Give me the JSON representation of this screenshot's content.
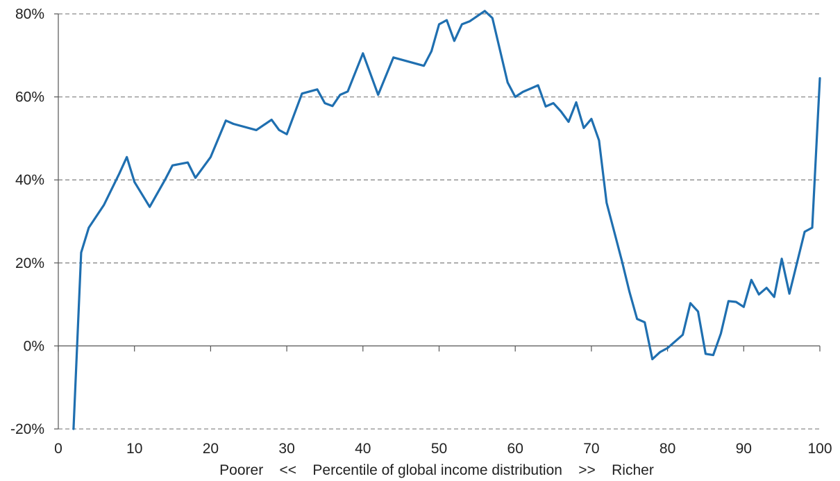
{
  "chart_data": {
    "type": "line",
    "title": "",
    "xlabel": "Poorer    <<    Percentile of global income distribution    >>    Richer",
    "ylabel": "",
    "xlim": [
      0,
      100
    ],
    "ylim": [
      -20,
      80
    ],
    "grid": true,
    "x_ticks": [
      0,
      10,
      20,
      30,
      40,
      50,
      60,
      70,
      80,
      90,
      100
    ],
    "x_tick_labels": [
      "0",
      "10",
      "20",
      "30",
      "40",
      "50",
      "60",
      "70",
      "80",
      "90",
      "100"
    ],
    "y_ticks": [
      -20,
      0,
      20,
      40,
      60,
      80
    ],
    "y_tick_labels": [
      "-20%",
      "0%",
      "20%",
      "40%",
      "60%",
      "80%"
    ],
    "series_color": "#1f6fb0",
    "series": [
      {
        "x": [
          2,
          3,
          4,
          6,
          8,
          9,
          10,
          12,
          14,
          15,
          17,
          18,
          20,
          22,
          23,
          26,
          28,
          29,
          30,
          32,
          34,
          35,
          36,
          37,
          38,
          40,
          42,
          44,
          48,
          49,
          50,
          51,
          52,
          53,
          54,
          56,
          57,
          59,
          60,
          61,
          63,
          64,
          65,
          66,
          67,
          68,
          69,
          70,
          71,
          72,
          73,
          74,
          75,
          76,
          77,
          78,
          79,
          80,
          82,
          83,
          84,
          85,
          86,
          87,
          88,
          89,
          90,
          91,
          92,
          93,
          94,
          95,
          96,
          98,
          99,
          100
        ],
        "y": [
          -20,
          22.5,
          28.5,
          34,
          41.5,
          45.5,
          39.5,
          33.5,
          40,
          43.5,
          44.2,
          40.5,
          45.5,
          54.3,
          53.5,
          52,
          54.5,
          52,
          51,
          60.8,
          61.8,
          58.5,
          57.8,
          60.5,
          61.3,
          70.5,
          60.5,
          69.5,
          67.5,
          71,
          77.5,
          78.5,
          73.5,
          77.5,
          78.2,
          80.7,
          79,
          63.5,
          60,
          61.2,
          62.8,
          57.7,
          58.5,
          56.5,
          54,
          58.7,
          52.5,
          54.7,
          49.5,
          34.5,
          27.5,
          20.5,
          13,
          6.5,
          5.7,
          -3.2,
          -1.5,
          -0.5,
          2.7,
          10.3,
          8.3,
          -1.9,
          -2.2,
          3,
          10.8,
          10.6,
          9.4,
          15.9,
          12.4,
          14,
          11.8,
          21,
          12.6,
          27.5,
          28.5,
          64.5
        ]
      }
    ]
  }
}
